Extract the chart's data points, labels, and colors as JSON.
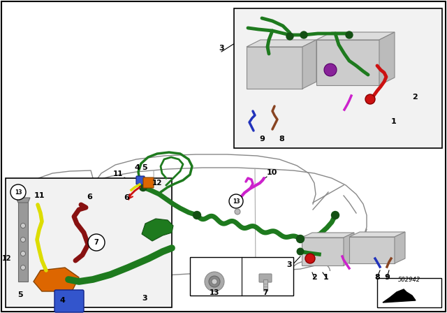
{
  "bg_color": "#ffffff",
  "part_number": "502942",
  "green": "#1e7a1e",
  "dark_green": "#145014",
  "red": "#cc1111",
  "magenta": "#cc22cc",
  "blue": "#2233bb",
  "orange": "#dd6600",
  "yellow": "#dddd00",
  "darkred": "#881111",
  "brown": "#884422",
  "purple": "#882299",
  "gray": "#aaaaaa",
  "car_line": "#888888",
  "inset_bg": "#f2f2f2",
  "black": "#000000",
  "white": "#ffffff"
}
